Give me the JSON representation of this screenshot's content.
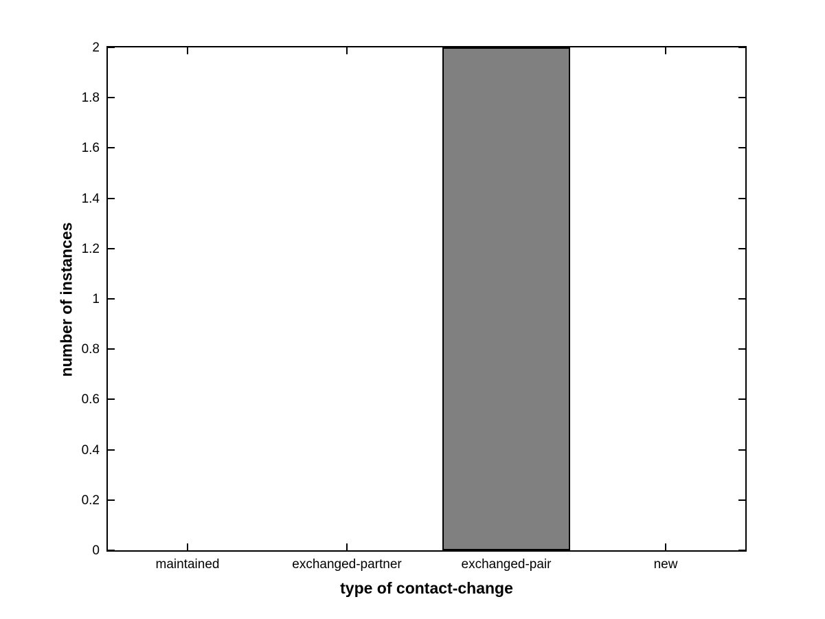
{
  "figure": {
    "background": "#ffffff"
  },
  "chart_data": {
    "type": "bar",
    "categories": [
      "maintained",
      "exchanged-partner",
      "exchanged-pair",
      "new"
    ],
    "values": [
      0,
      0,
      2,
      0
    ],
    "title": "",
    "xlabel": "type of contact-change",
    "ylabel": "number of instances",
    "ylim": [
      0,
      2
    ],
    "ytick_values": [
      0,
      0.2,
      0.4,
      0.6,
      0.8,
      1,
      1.2,
      1.4,
      1.6,
      1.8,
      2
    ],
    "ytick_labels": [
      "0",
      "0.2",
      "0.4",
      "0.6",
      "0.8",
      "1",
      "1.2",
      "1.4",
      "1.6",
      "1.8",
      "2"
    ],
    "bar_width_fraction": 0.8,
    "bar_color": "#808080",
    "bar_edge_color": "#000000",
    "axis_color": "#000000",
    "grid": "off",
    "legend": "none",
    "box": "on",
    "tick_direction": "in"
  }
}
